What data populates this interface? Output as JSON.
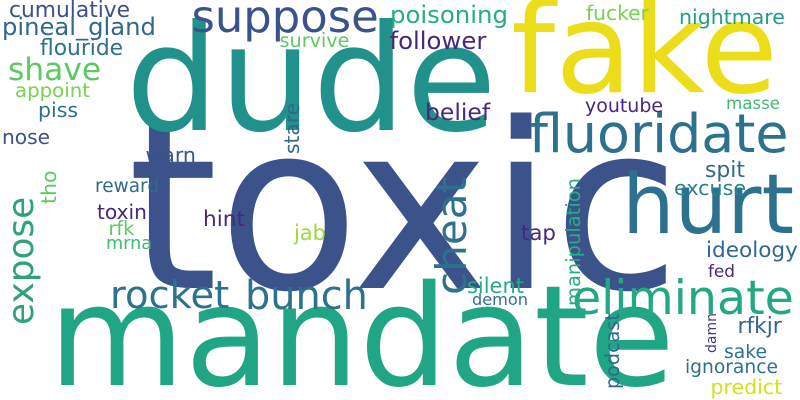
{
  "word_cloud": {
    "words": [
      {
        "id": "toxic",
        "text": "toxic",
        "color": "#3b528b"
      },
      {
        "id": "dude",
        "text": "dude",
        "color": "#21918c"
      },
      {
        "id": "mandate",
        "text": "mandate",
        "color": "#21a685"
      },
      {
        "id": "fake",
        "text": "fake",
        "color": "#ecdd1b"
      },
      {
        "id": "hurt",
        "text": "hurt",
        "color": "#2c728e"
      },
      {
        "id": "suppose",
        "text": "suppose",
        "color": "#3b528b"
      },
      {
        "id": "fluoridate",
        "text": "fluoridate",
        "color": "#2c728e"
      },
      {
        "id": "eliminate",
        "text": "eliminate",
        "color": "#22a884"
      },
      {
        "id": "rocket",
        "text": "rocket",
        "color": "#2c728e"
      },
      {
        "id": "bunch",
        "text": "bunch",
        "color": "#2c728e"
      },
      {
        "id": "expose",
        "text": "expose",
        "color": "#2ea375"
      },
      {
        "id": "cheat",
        "text": "cheat",
        "color": "#2c728e"
      },
      {
        "id": "shave",
        "text": "shave",
        "color": "#5ec962"
      },
      {
        "id": "pineal_gland",
        "text": "pineal_gland",
        "color": "#31688e"
      },
      {
        "id": "poisoning",
        "text": "poisoning",
        "color": "#27ad81"
      },
      {
        "id": "fucker",
        "text": "fucker",
        "color": "#7ad151"
      },
      {
        "id": "nightmare",
        "text": "nightmare",
        "color": "#1f9e89"
      },
      {
        "id": "cumulative",
        "text": "cumulative",
        "color": "#3b528b"
      },
      {
        "id": "flouride",
        "text": "flouride",
        "color": "#2c728e"
      },
      {
        "id": "survive",
        "text": "survive",
        "color": "#5ec962"
      },
      {
        "id": "follower",
        "text": "follower",
        "color": "#482878"
      },
      {
        "id": "appoint",
        "text": "appoint",
        "color": "#7ad151"
      },
      {
        "id": "piss",
        "text": "piss",
        "color": "#2c728e"
      },
      {
        "id": "youtube",
        "text": "youtube",
        "color": "#482878"
      },
      {
        "id": "masse",
        "text": "masse",
        "color": "#3fbc73"
      },
      {
        "id": "belief",
        "text": "belief",
        "color": "#482878"
      },
      {
        "id": "nose",
        "text": "nose",
        "color": "#3b528b"
      },
      {
        "id": "stare",
        "text": "stare",
        "color": "#31688e"
      },
      {
        "id": "warn",
        "text": "warn",
        "color": "#3b528b"
      },
      {
        "id": "spit",
        "text": "spit",
        "color": "#31688e"
      },
      {
        "id": "excuse",
        "text": "excuse",
        "color": "#26828e"
      },
      {
        "id": "tho",
        "text": "tho",
        "color": "#5ec962"
      },
      {
        "id": "reward",
        "text": "reward",
        "color": "#31688e"
      },
      {
        "id": "toxin",
        "text": "toxin",
        "color": "#482878"
      },
      {
        "id": "hint",
        "text": "hint",
        "color": "#482878"
      },
      {
        "id": "rfk",
        "text": "rfk",
        "color": "#5ec962"
      },
      {
        "id": "mrna",
        "text": "mrna",
        "color": "#3fbc73"
      },
      {
        "id": "jab",
        "text": "jab",
        "color": "#a0da39"
      },
      {
        "id": "manipulation",
        "text": "manipulation",
        "color": "#27ad81"
      },
      {
        "id": "tap",
        "text": "tap",
        "color": "#482878"
      },
      {
        "id": "ideology",
        "text": "ideology",
        "color": "#31688e"
      },
      {
        "id": "fed",
        "text": "fed",
        "color": "#482878"
      },
      {
        "id": "silent",
        "text": "silent",
        "color": "#27ad81"
      },
      {
        "id": "demon",
        "text": "demon",
        "color": "#2c728e"
      },
      {
        "id": "podcast",
        "text": "podcast",
        "color": "#31688e"
      },
      {
        "id": "damn",
        "text": "damn",
        "color": "#443a83"
      },
      {
        "id": "rfkjr",
        "text": "rfkjr",
        "color": "#31688e"
      },
      {
        "id": "sake",
        "text": "sake",
        "color": "#2c728e"
      },
      {
        "id": "ignorance",
        "text": "ignorance",
        "color": "#2c728e"
      },
      {
        "id": "predict",
        "text": "predict",
        "color": "#d2e21b"
      }
    ]
  }
}
